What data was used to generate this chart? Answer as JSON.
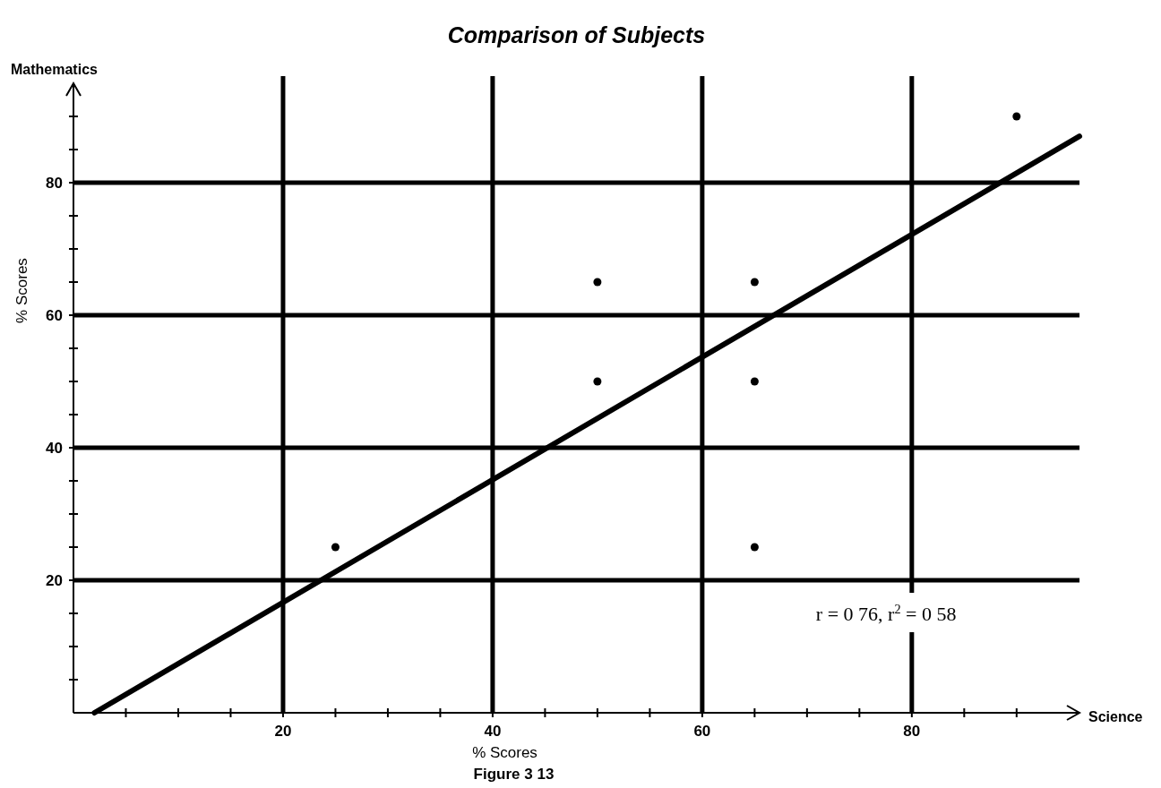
{
  "chart_data": {
    "type": "scatter",
    "title": "Comparison of Subjects",
    "xlabel": "% Scores",
    "ylabel": "% Scores",
    "annotations": [
      "r = 0 76, r$^{2}$ = 0 58",
      "Mathematics",
      "Science",
      "Figure 3 13"
    ],
    "xlim": [
      0,
      96
    ],
    "ylim": [
      0,
      95
    ],
    "xticks": [
      {
        "value": 5,
        "label": null
      },
      {
        "value": 10,
        "label": null
      },
      {
        "value": 15,
        "label": null
      },
      20,
      {
        "value": 25,
        "label": null
      },
      {
        "value": 30,
        "label": null
      },
      {
        "value": 35,
        "label": null
      },
      40,
      {
        "value": 45,
        "label": null
      },
      {
        "value": 50,
        "label": null
      },
      {
        "value": 55,
        "label": null
      },
      60,
      {
        "value": 65,
        "label": null
      },
      {
        "value": 70,
        "label": null
      },
      {
        "value": 75,
        "label": null
      },
      80,
      {
        "value": 85,
        "label": null
      },
      {
        "value": 90,
        "label": null
      }
    ],
    "yticks": [
      {
        "value": 5,
        "label": null
      },
      {
        "value": 10,
        "label": null
      },
      {
        "value": 15,
        "label": null
      },
      20,
      {
        "value": 25,
        "label": null
      },
      {
        "value": 30,
        "label": null
      },
      {
        "value": 35,
        "label": null
      },
      40,
      {
        "value": 45,
        "label": null
      },
      {
        "value": 50,
        "label": null
      },
      {
        "value": 55,
        "label": null
      },
      60,
      {
        "value": 65,
        "label": null
      },
      {
        "value": 70,
        "label": null
      },
      {
        "value": 75,
        "label": null
      },
      80,
      {
        "value": 85,
        "label": null
      },
      {
        "value": 90,
        "label": null
      }
    ],
    "grid": true,
    "series": [
      {
        "color": "#000000",
        "marker": "circle",
        "x": [
          25,
          50,
          50,
          65,
          65,
          65,
          90
        ],
        "values": [
          25,
          65,
          50,
          65,
          50,
          25,
          90
        ]
      },
      {
        "type": "line",
        "color": "#000000",
        "line_style": "solid",
        "x": [
          2,
          96
        ],
        "values": [
          0,
          87
        ]
      }
    ]
  }
}
